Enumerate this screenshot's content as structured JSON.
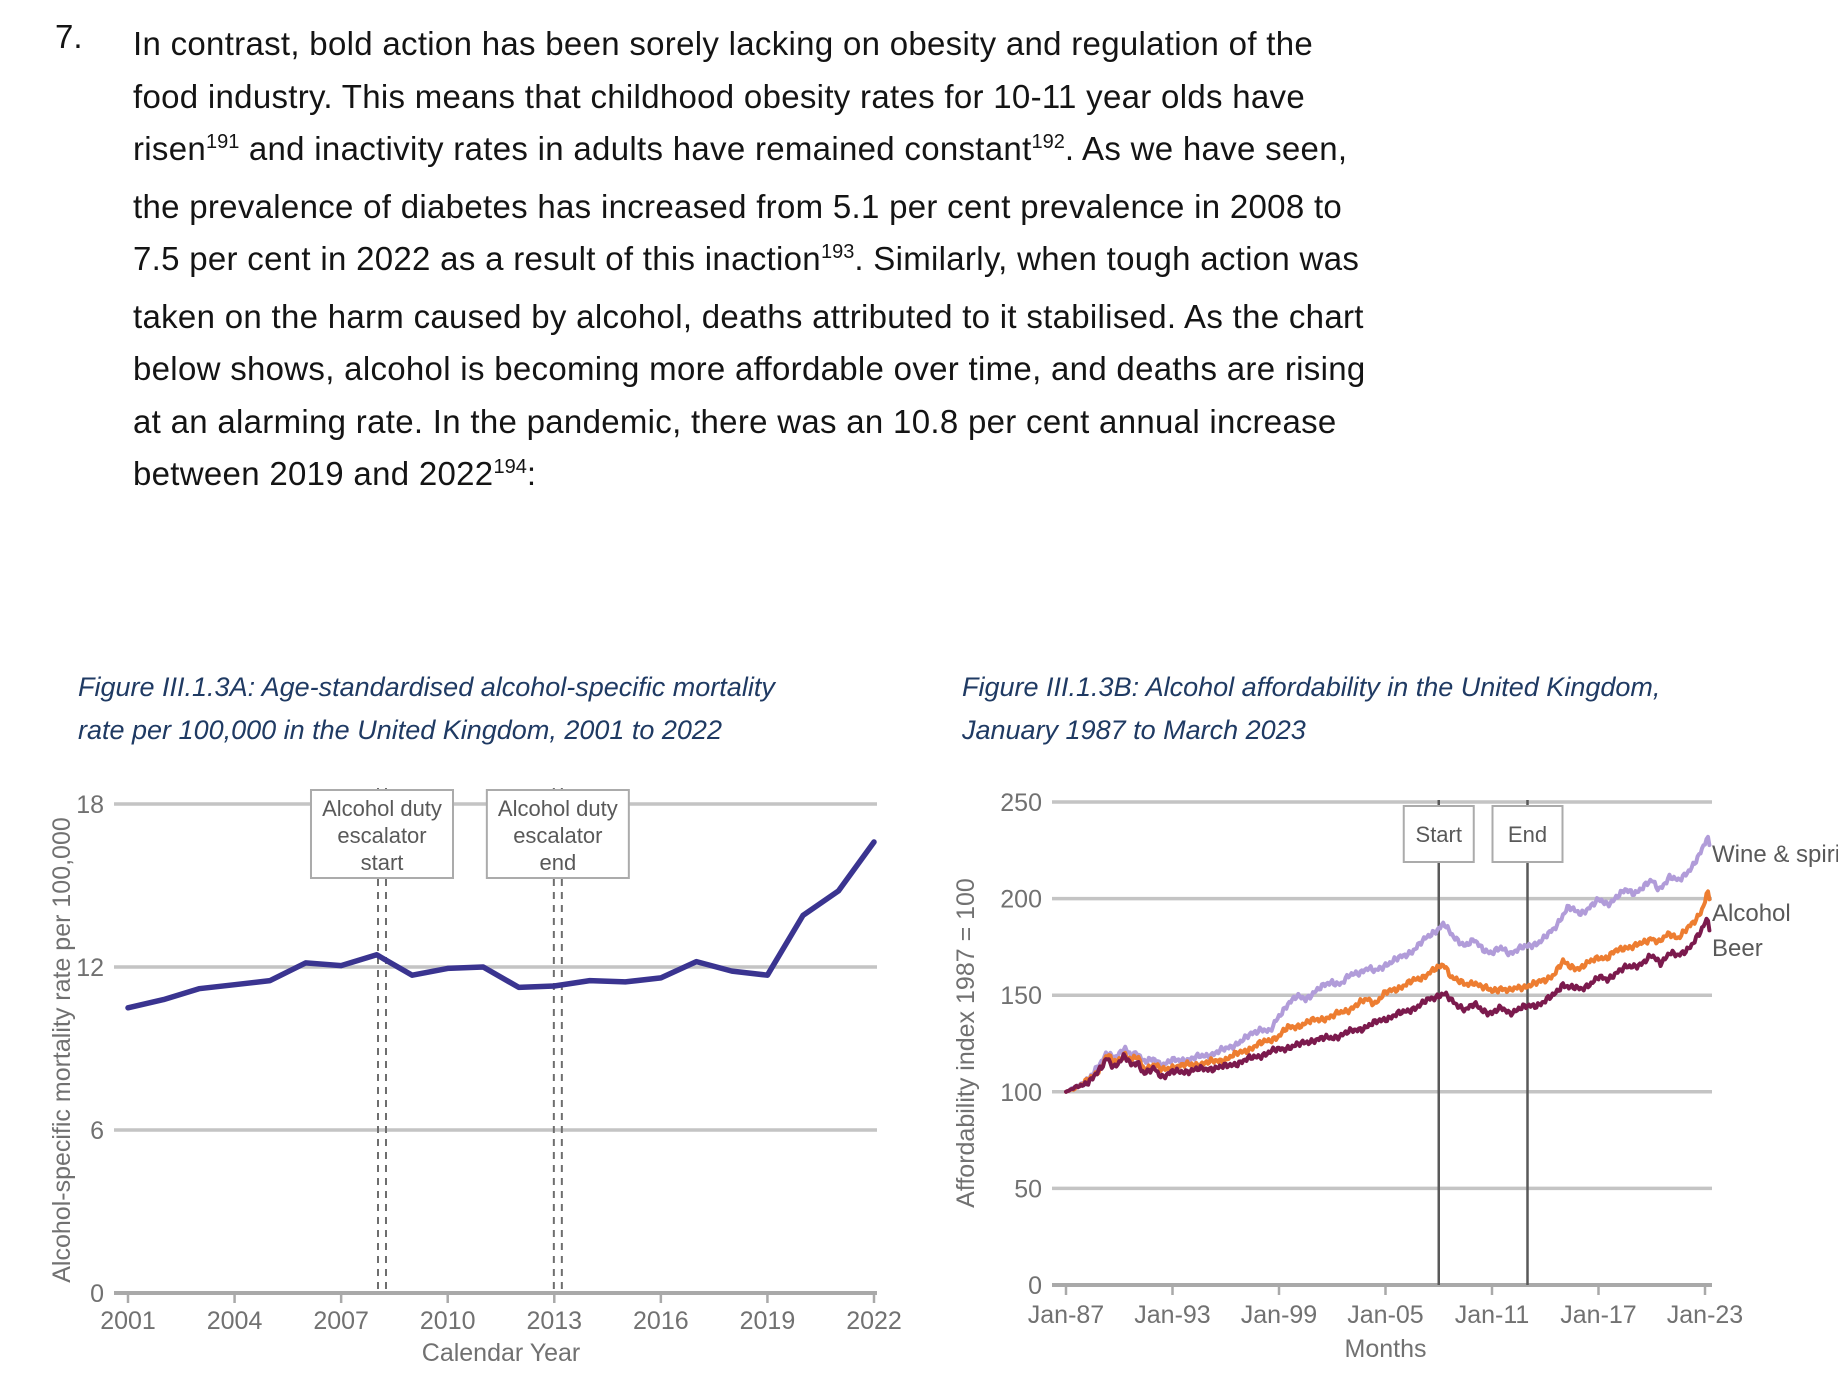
{
  "paragraph": {
    "number": "7.",
    "lines": [
      [
        {
          "t": "In contrast, bold action has been sorely lacking on obesity and regulation of the"
        }
      ],
      [
        {
          "t": "food industry. This means that childhood obesity rates for 10-11 year olds have"
        }
      ],
      [
        {
          "t": "risen"
        },
        {
          "t": "191",
          "sup": true
        },
        {
          "t": " and inactivity rates in adults have remained constant"
        },
        {
          "t": "192",
          "sup": true
        },
        {
          "t": ". As we have seen,"
        }
      ],
      [
        {
          "t": "the prevalence of diabetes has increased from 5.1 per cent prevalence in 2008 to"
        }
      ],
      [
        {
          "t": "7.5 per cent in 2022 as a result of this inaction"
        },
        {
          "t": "193",
          "sup": true
        },
        {
          "t": ". Similarly, when tough action was"
        }
      ],
      [
        {
          "t": "taken on the harm caused by alcohol, deaths attributed to it stabilised. As the chart"
        }
      ],
      [
        {
          "t": "below shows, alcohol is becoming more affordable over time, and deaths are rising"
        }
      ],
      [
        {
          "t": "at an alarming rate. In the pandemic, there was an 10.8 per cent annual increase"
        }
      ],
      [
        {
          "t": "between 2019 and 2022"
        },
        {
          "t": "194",
          "sup": true
        },
        {
          "t": ":"
        }
      ]
    ]
  },
  "chart_data": [
    {
      "id": "mortality",
      "type": "line",
      "title": "Figure III.1.3A: Age-standardised alcohol-specific mortality rate per 100,000 in the United Kingdom, 2001 to 2022",
      "title_lines": [
        "Figure III.1.3A: Age-standardised alcohol-specific mortality",
        "rate per 100,000 in the United Kingdom, 2001 to 2022"
      ],
      "xlabel": "Calendar Year",
      "ylabel": "Alcohol-specific mortality rate per 100,000",
      "x": [
        2001,
        2002,
        2003,
        2004,
        2005,
        2006,
        2007,
        2008,
        2009,
        2010,
        2011,
        2012,
        2013,
        2014,
        2015,
        2016,
        2017,
        2018,
        2019,
        2020,
        2021,
        2022
      ],
      "values": [
        10.5,
        10.8,
        11.2,
        11.35,
        11.5,
        12.15,
        12.05,
        12.45,
        11.7,
        11.95,
        12.0,
        11.25,
        11.3,
        11.5,
        11.45,
        11.6,
        12.2,
        11.85,
        11.7,
        13.9,
        14.8,
        16.6
      ],
      "ylim": [
        0,
        18
      ],
      "yticks": [
        0,
        6,
        12,
        18
      ],
      "xticks": [
        2001,
        2004,
        2007,
        2010,
        2013,
        2016,
        2019,
        2022
      ],
      "line_color": "#3a3490",
      "grid": true,
      "legend": "none",
      "annotations": [
        {
          "label_lines": [
            "Alcohol duty",
            "escalator",
            "start"
          ],
          "x": 2008.15,
          "style": "double-dashed"
        },
        {
          "label_lines": [
            "Alcohol duty",
            "escalator",
            "end"
          ],
          "x": 2013.1,
          "style": "double-dashed"
        }
      ]
    },
    {
      "id": "affordability",
      "type": "line",
      "title": "Figure III.1.3B: Alcohol affordability in the United Kingdom, January 1987 to March 2023",
      "title_lines": [
        "Figure III.1.3B: Alcohol affordability in the United Kingdom,",
        "January 1987 to March 2023"
      ],
      "xlabel": "Months",
      "ylabel": "Affordability index 1987 = 100",
      "ylim": [
        0,
        250
      ],
      "yticks": [
        0,
        50,
        100,
        150,
        200,
        250
      ],
      "xticks": [
        {
          "year": 1987,
          "label": "Jan-87"
        },
        {
          "year": 1993,
          "label": "Jan-93"
        },
        {
          "year": 1999,
          "label": "Jan-99"
        },
        {
          "year": 2005,
          "label": "Jan-05"
        },
        {
          "year": 2011,
          "label": "Jan-11"
        },
        {
          "year": 2017,
          "label": "Jan-17"
        },
        {
          "year": 2023,
          "label": "Jan-23"
        }
      ],
      "annotations": [
        {
          "label": "Start",
          "x": 2008,
          "style": "solid"
        },
        {
          "label": "End",
          "x": 2013,
          "style": "solid"
        }
      ],
      "series": [
        {
          "name": "Wine & spirits",
          "color": "#b19cd9",
          "points": [
            [
              1987,
              100
            ],
            [
              1987.5,
              102
            ],
            [
              1988,
              105
            ],
            [
              1988.5,
              109
            ],
            [
              1989,
              115
            ],
            [
              1989.3,
              121
            ],
            [
              1989.7,
              118
            ],
            [
              1990,
              119
            ],
            [
              1990.3,
              122
            ],
            [
              1990.7,
              119
            ],
            [
              1991,
              121
            ],
            [
              1991.4,
              115
            ],
            [
              1992,
              117
            ],
            [
              1992.4,
              114
            ],
            [
              1993,
              116
            ],
            [
              1994,
              117
            ],
            [
              1995,
              119
            ],
            [
              1996,
              122
            ],
            [
              1997,
              127
            ],
            [
              1998,
              133
            ],
            [
              1998.5,
              131
            ],
            [
              1999,
              139
            ],
            [
              1999.5,
              146
            ],
            [
              2000,
              149
            ],
            [
              2000.5,
              148
            ],
            [
              2001,
              152
            ],
            [
              2002,
              157
            ],
            [
              2002.5,
              156
            ],
            [
              2003,
              160
            ],
            [
              2004,
              164
            ],
            [
              2004.4,
              162
            ],
            [
              2005,
              166
            ],
            [
              2006,
              170
            ],
            [
              2006.5,
              173
            ],
            [
              2007,
              177
            ],
            [
              2007.5,
              181
            ],
            [
              2008,
              185
            ],
            [
              2008.3,
              187
            ],
            [
              2008.7,
              181
            ],
            [
              2009,
              179
            ],
            [
              2009.5,
              176
            ],
            [
              2010,
              178
            ],
            [
              2010.5,
              174
            ],
            [
              2011,
              172
            ],
            [
              2011.5,
              174
            ],
            [
              2012,
              172
            ],
            [
              2012.5,
              174
            ],
            [
              2013,
              175
            ],
            [
              2013.5,
              177
            ],
            [
              2014,
              180
            ],
            [
              2014.5,
              184
            ],
            [
              2015,
              192
            ],
            [
              2015.3,
              196
            ],
            [
              2015.7,
              193
            ],
            [
              2016,
              192
            ],
            [
              2016.5,
              196
            ],
            [
              2017,
              199
            ],
            [
              2017.5,
              197
            ],
            [
              2018,
              201
            ],
            [
              2018.5,
              204
            ],
            [
              2019,
              203
            ],
            [
              2019.5,
              206
            ],
            [
              2020,
              209
            ],
            [
              2020.4,
              205
            ],
            [
              2021,
              211
            ],
            [
              2021.5,
              209
            ],
            [
              2022,
              214
            ],
            [
              2022.4,
              218
            ],
            [
              2022.8,
              224
            ],
            [
              2023,
              229
            ],
            [
              2023.15,
              232
            ],
            [
              2023.25,
              228
            ]
          ]
        },
        {
          "name": "Alcohol",
          "color": "#ed7d31",
          "points": [
            [
              1987,
              100
            ],
            [
              1987.5,
              102
            ],
            [
              1988,
              104
            ],
            [
              1988.5,
              108
            ],
            [
              1989,
              113
            ],
            [
              1989.3,
              119
            ],
            [
              1989.7,
              115
            ],
            [
              1990,
              117
            ],
            [
              1990.3,
              120
            ],
            [
              1990.7,
              116
            ],
            [
              1991,
              118
            ],
            [
              1991.4,
              112
            ],
            [
              1992,
              114
            ],
            [
              1992.4,
              111
            ],
            [
              1993,
              113
            ],
            [
              1994,
              114
            ],
            [
              1995,
              115
            ],
            [
              1996,
              117
            ],
            [
              1997,
              121
            ],
            [
              1998,
              125
            ],
            [
              1999,
              129
            ],
            [
              1999.5,
              133
            ],
            [
              2000,
              134
            ],
            [
              2001,
              137
            ],
            [
              2002,
              139
            ],
            [
              2003,
              143
            ],
            [
              2004,
              148
            ],
            [
              2004.4,
              146
            ],
            [
              2005,
              151
            ],
            [
              2006,
              155
            ],
            [
              2007,
              159
            ],
            [
              2007.5,
              162
            ],
            [
              2008,
              164
            ],
            [
              2008.3,
              166
            ],
            [
              2008.7,
              160
            ],
            [
              2009,
              158
            ],
            [
              2009.5,
              155
            ],
            [
              2010,
              157
            ],
            [
              2010.5,
              154
            ],
            [
              2011,
              152
            ],
            [
              2011.5,
              154
            ],
            [
              2012,
              152
            ],
            [
              2012.5,
              154
            ],
            [
              2013,
              155
            ],
            [
              2013.5,
              156
            ],
            [
              2014,
              158
            ],
            [
              2014.5,
              161
            ],
            [
              2015,
              167
            ],
            [
              2015.4,
              165
            ],
            [
              2016,
              164
            ],
            [
              2016.5,
              167
            ],
            [
              2017,
              170
            ],
            [
              2017.5,
              169
            ],
            [
              2018,
              173
            ],
            [
              2018.5,
              175
            ],
            [
              2019,
              175
            ],
            [
              2019.5,
              177
            ],
            [
              2020,
              180
            ],
            [
              2020.4,
              177
            ],
            [
              2021,
              182
            ],
            [
              2021.5,
              180
            ],
            [
              2022,
              184
            ],
            [
              2022.4,
              188
            ],
            [
              2022.8,
              194
            ],
            [
              2023,
              199
            ],
            [
              2023.15,
              204
            ],
            [
              2023.25,
              200
            ]
          ]
        },
        {
          "name": "Beer",
          "color": "#7b1a4d",
          "points": [
            [
              1987,
              100
            ],
            [
              1987.5,
              102
            ],
            [
              1988,
              104
            ],
            [
              1988.5,
              107
            ],
            [
              1989,
              112
            ],
            [
              1989.3,
              118
            ],
            [
              1989.7,
              113
            ],
            [
              1990,
              115
            ],
            [
              1990.3,
              118
            ],
            [
              1990.7,
              114
            ],
            [
              1991,
              116
            ],
            [
              1991.4,
              109
            ],
            [
              1992,
              112
            ],
            [
              1992.4,
              108
            ],
            [
              1993,
              110
            ],
            [
              1994,
              111
            ],
            [
              1995,
              112
            ],
            [
              1996,
              113
            ],
            [
              1997,
              116
            ],
            [
              1998,
              119
            ],
            [
              1999,
              122
            ],
            [
              2000,
              124
            ],
            [
              2001,
              127
            ],
            [
              2002,
              128
            ],
            [
              2003,
              131
            ],
            [
              2004,
              134
            ],
            [
              2005,
              138
            ],
            [
              2006,
              141
            ],
            [
              2007,
              145
            ],
            [
              2007.5,
              148
            ],
            [
              2008,
              150
            ],
            [
              2008.3,
              151
            ],
            [
              2008.7,
              147
            ],
            [
              2009,
              145
            ],
            [
              2009.5,
              143
            ],
            [
              2010,
              145
            ],
            [
              2010.5,
              142
            ],
            [
              2011,
              141
            ],
            [
              2011.5,
              143
            ],
            [
              2012,
              141
            ],
            [
              2012.5,
              143
            ],
            [
              2013,
              144
            ],
            [
              2013.5,
              145
            ],
            [
              2014,
              147
            ],
            [
              2014.5,
              150
            ],
            [
              2015,
              156
            ],
            [
              2015.4,
              154
            ],
            [
              2016,
              153
            ],
            [
              2016.5,
              156
            ],
            [
              2017,
              159
            ],
            [
              2017.5,
              158
            ],
            [
              2018,
              162
            ],
            [
              2018.5,
              164
            ],
            [
              2019,
              165
            ],
            [
              2019.5,
              167
            ],
            [
              2020,
              170
            ],
            [
              2020.5,
              167
            ],
            [
              2021,
              172
            ],
            [
              2021.5,
              170
            ],
            [
              2022,
              174
            ],
            [
              2022.4,
              178
            ],
            [
              2022.8,
              183
            ],
            [
              2023,
              187
            ],
            [
              2023.15,
              190
            ],
            [
              2023.25,
              184
            ]
          ]
        }
      ]
    }
  ],
  "colors": {
    "grid": "#c4c4c4",
    "axis": "#a9a9a9",
    "annotation_line_a": "#6e6e6e",
    "annotation_line_b": "#595959",
    "caption": "#1f3a63"
  }
}
